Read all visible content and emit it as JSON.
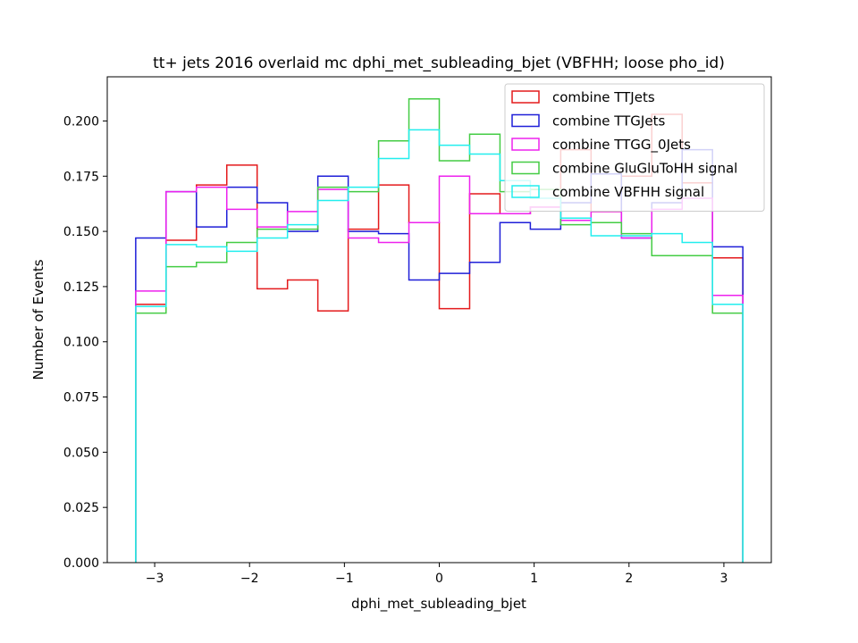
{
  "chart_data": {
    "type": "step-histogram",
    "title": "tt+ jets 2016 overlaid mc dphi_met_subleading_bjet (VBFHH; loose pho_id)",
    "xlabel": "dphi_met_subleading_bjet",
    "ylabel": "Number of Events",
    "xlim": [
      -3.5,
      3.5
    ],
    "ylim": [
      0,
      0.22
    ],
    "xticks": [
      -3,
      -2,
      -1,
      0,
      1,
      2,
      3
    ],
    "xtick_labels": [
      "−3",
      "−2",
      "−1",
      "0",
      "1",
      "2",
      "3"
    ],
    "yticks": [
      0,
      0.025,
      0.05,
      0.075,
      0.1,
      0.125,
      0.15,
      0.175,
      0.2
    ],
    "ytick_labels": [
      "0.000",
      "0.025",
      "0.050",
      "0.075",
      "0.100",
      "0.125",
      "0.150",
      "0.175",
      "0.200"
    ],
    "bin_edges": [
      -3.2,
      -2.88,
      -2.56,
      -2.24,
      -1.92,
      -1.6,
      -1.28,
      -0.96,
      -0.64,
      -0.32,
      0.0,
      0.32,
      0.64,
      0.96,
      1.28,
      1.6,
      1.92,
      2.24,
      2.56,
      2.88,
      3.2
    ],
    "legend_position": "upper right",
    "grid": false,
    "series": [
      {
        "name": "combine TTJets",
        "color": "#e41a1c",
        "values": [
          0.117,
          0.146,
          0.171,
          0.18,
          0.124,
          0.128,
          0.114,
          0.151,
          0.171,
          0.154,
          0.115,
          0.167,
          0.158,
          0.161,
          0.187,
          0.159,
          0.175,
          0.203,
          0.172,
          0.138
        ]
      },
      {
        "name": "combine TTGJets",
        "color": "#1f1fd8",
        "values": [
          0.147,
          0.168,
          0.152,
          0.17,
          0.163,
          0.15,
          0.175,
          0.15,
          0.149,
          0.128,
          0.131,
          0.136,
          0.154,
          0.151,
          0.163,
          0.176,
          0.147,
          0.163,
          0.187,
          0.143
        ]
      },
      {
        "name": "combine TTGG_0Jets",
        "color": "#ee22ee",
        "values": [
          0.123,
          0.168,
          0.17,
          0.16,
          0.152,
          0.159,
          0.169,
          0.147,
          0.145,
          0.154,
          0.175,
          0.158,
          0.158,
          0.161,
          0.155,
          0.159,
          0.147,
          0.16,
          0.165,
          0.121
        ]
      },
      {
        "name": "combine GluGluToHH signal",
        "color": "#44cc44",
        "values": [
          0.113,
          0.134,
          0.136,
          0.145,
          0.151,
          0.151,
          0.17,
          0.168,
          0.191,
          0.21,
          0.182,
          0.194,
          0.168,
          0.169,
          0.153,
          0.154,
          0.149,
          0.139,
          0.139,
          0.113
        ]
      },
      {
        "name": "combine VBFHH signal",
        "color": "#22eeee",
        "values": [
          0.116,
          0.144,
          0.143,
          0.141,
          0.147,
          0.153,
          0.164,
          0.17,
          0.183,
          0.196,
          0.189,
          0.185,
          0.173,
          0.165,
          0.156,
          0.148,
          0.148,
          0.149,
          0.145,
          0.117
        ]
      }
    ]
  }
}
